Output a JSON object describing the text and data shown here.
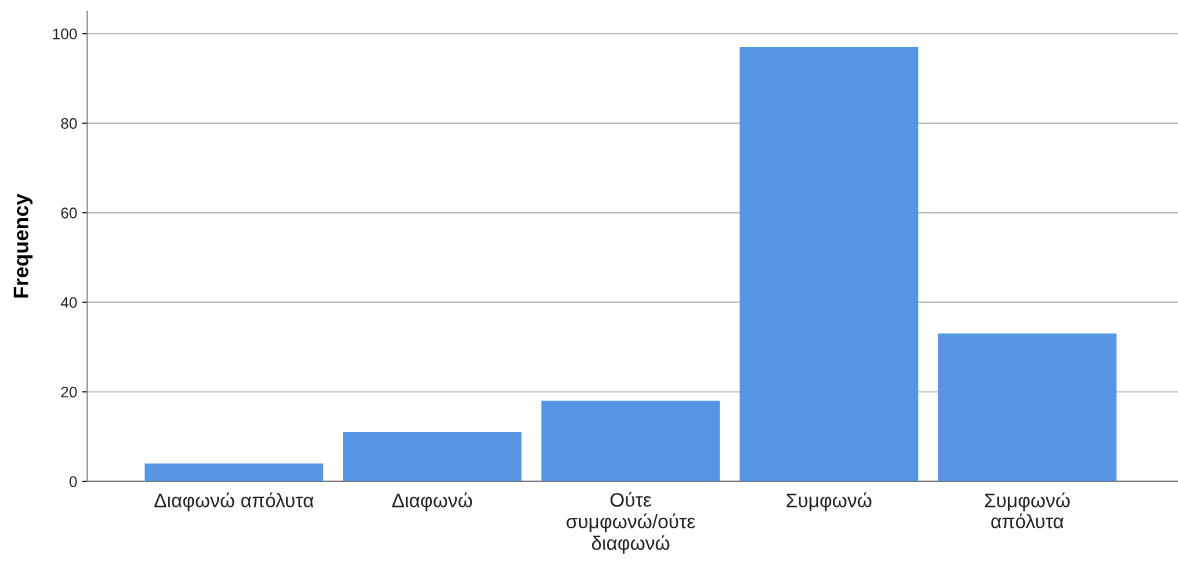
{
  "chart_data": {
    "type": "bar",
    "ylabel": "Frequency",
    "categories": [
      "Διαφωνώ απόλυτα",
      "Διαφωνώ",
      "Ούτε\nσυμφωνώ/ούτε\nδιαφωνώ",
      "Συμφωνώ",
      "Συμφωνώ\nαπόλυτα"
    ],
    "values": [
      4,
      11,
      18,
      97,
      33
    ],
    "color": "#5595e2",
    "ylim": [
      0,
      105
    ],
    "yticks": [
      0,
      20,
      40,
      60,
      80,
      100
    ],
    "grid": "y",
    "legend": false
  }
}
